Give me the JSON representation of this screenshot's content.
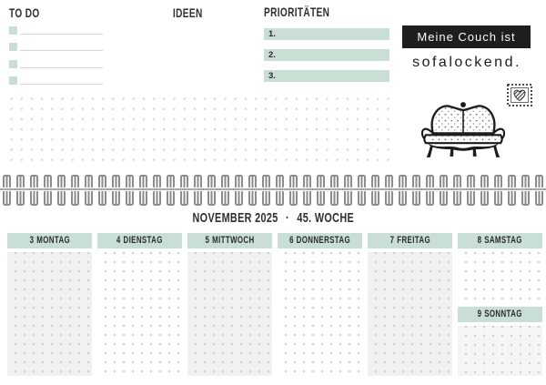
{
  "colors": {
    "mint": "#c9dfd6",
    "ink": "#2e2e2e",
    "quote_bg": "#1e1e1e",
    "shade": "#f1f1f1"
  },
  "top_page": {
    "todo": {
      "heading": "To Do"
    },
    "ideen": {
      "heading": "Ideen"
    },
    "prioritaeten": {
      "heading": "Prioritäten",
      "items": [
        "1.",
        "2.",
        "3."
      ]
    },
    "quote": {
      "line1": "Meine Couch ist",
      "line2": "sofalockend."
    }
  },
  "binding": {
    "ring_count": 40
  },
  "bottom_page": {
    "title": {
      "month": "November 2025",
      "separator": "·",
      "week": "45. Woche"
    },
    "days": [
      {
        "date": "3",
        "name": "Montag"
      },
      {
        "date": "4",
        "name": "Dienstag"
      },
      {
        "date": "5",
        "name": "Mittwoch"
      },
      {
        "date": "6",
        "name": "Donnerstag"
      },
      {
        "date": "7",
        "name": "Freitag"
      },
      {
        "date": "8",
        "name": "Samstag"
      },
      {
        "date": "9",
        "name": "Sonntag"
      }
    ]
  }
}
